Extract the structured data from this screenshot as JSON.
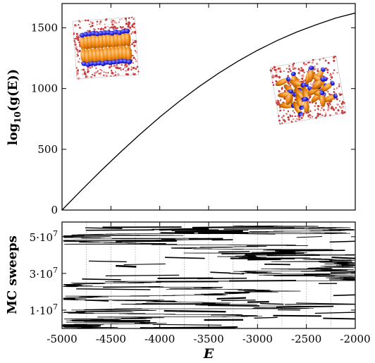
{
  "chart_data": [
    {
      "type": "line",
      "ylabel_main": "log",
      "ylabel_sub": "10",
      "ylabel_rest": "(g(E))",
      "xlim": [
        -5000,
        -2000
      ],
      "ylim": [
        0,
        1700
      ],
      "yticks": [
        0,
        500,
        1000,
        1500
      ],
      "x": [
        -5000,
        -4800,
        -4600,
        -4400,
        -4200,
        -4000,
        -3800,
        -3600,
        -3400,
        -3200,
        -3000,
        -2800,
        -2600,
        -2400,
        -2200,
        -2000
      ],
      "y": [
        0,
        165,
        325,
        478,
        625,
        765,
        895,
        1015,
        1125,
        1225,
        1315,
        1395,
        1465,
        1525,
        1580,
        1622
      ],
      "insets": [
        {
          "name": "ordered-smectic-snapshot",
          "near_E": -4700,
          "near_logg": 1340
        },
        {
          "name": "disordered-snapshot",
          "near_E": -2450,
          "near_logg": 1000
        }
      ]
    },
    {
      "type": "line",
      "ylabel": "MC sweeps",
      "xlabel": "E",
      "xlim": [
        -5000,
        -2000
      ],
      "ylim": [
        0,
        58000000
      ],
      "xticks": [
        -5000,
        -4500,
        -4000,
        -3500,
        -3000,
        -2500,
        -2000
      ],
      "xticklabels": [
        "-5000",
        "-4500",
        "-4000",
        "-3500",
        "-3000",
        "-2500",
        "-2000"
      ],
      "yticks": [
        10000000,
        30000000,
        50000000
      ],
      "yticklabels": [
        {
          "m": "1·10",
          "e": "7"
        },
        {
          "m": "3·10",
          "e": "7"
        },
        {
          "m": "5·10",
          "e": "7"
        }
      ],
      "vgrid_x": [
        -4750,
        -4500,
        -4250,
        -4000,
        -3750,
        -3500,
        -3250,
        -3000,
        -2750,
        -2500,
        -2250
      ],
      "walk": {
        "description": "random walk of the sampler in energy vs Monte Carlo time",
        "E_range": [
          -4990,
          -2000
        ],
        "sweeps_range": [
          0,
          56000000
        ]
      }
    }
  ]
}
